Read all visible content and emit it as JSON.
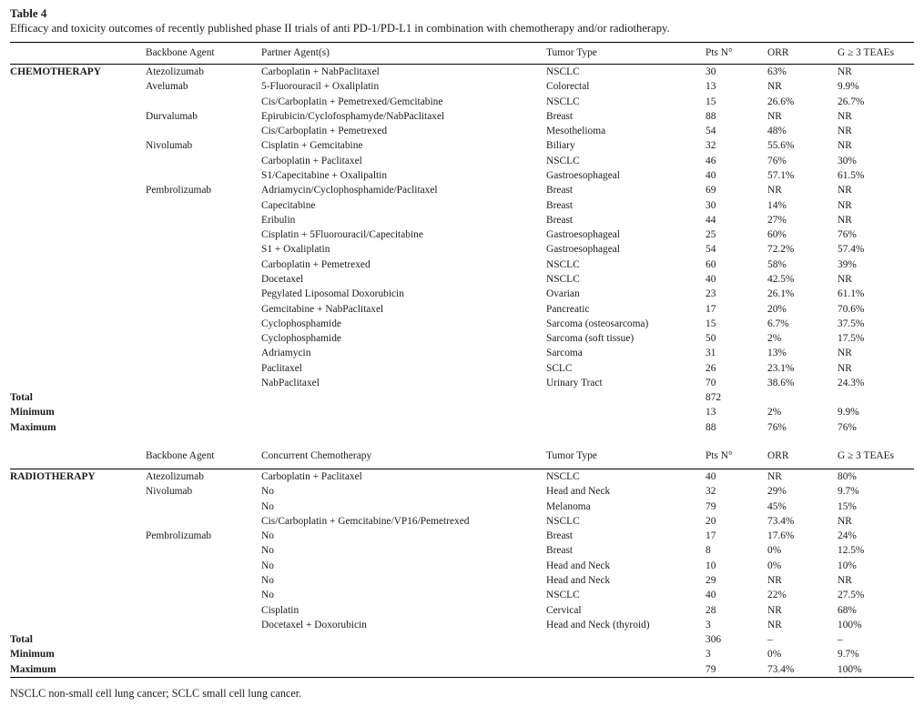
{
  "colors": {
    "background": "#ffffff",
    "text": "#1b1b1b",
    "rule": "#000000"
  },
  "table": {
    "caption": {
      "label": "Table 4",
      "description": "Efficacy and toxicity outcomes of recently published phase II trials of anti PD-1/PD-L1 in combination with chemotherapy and/or radiotherapy."
    },
    "sections": [
      {
        "name": "CHEMOTHERAPY",
        "headers": [
          "",
          "Backbone Agent",
          "Partner Agent(s)",
          "Tumor Type",
          "Pts N°",
          "ORR",
          "G ≥ 3 TEAEs"
        ],
        "rows": [
          [
            "CHEMOTHERAPY",
            "Atezolizumab",
            "Carboplatin + NabPaclitaxel",
            "NSCLC",
            "30",
            "63%",
            "NR"
          ],
          [
            "",
            "Avelumab",
            "5-Fluorouracil + Oxaliplatin",
            "Colorectal",
            "13",
            "NR",
            "9.9%"
          ],
          [
            "",
            "",
            "Cis/Carboplatin + Pemetrexed/Gemcitabine",
            "NSCLC",
            "15",
            "26.6%",
            "26.7%"
          ],
          [
            "",
            "Durvalumab",
            "Epirubicin/Cyclofosphamyde/NabPaclitaxel",
            "Breast",
            "88",
            "NR",
            "NR"
          ],
          [
            "",
            "",
            "Cis/Carboplatin + Pemetrexed",
            "Mesothelioma",
            "54",
            "48%",
            "NR"
          ],
          [
            "",
            "Nivolumab",
            "Cisplatin + Gemcitabine",
            "Biliary",
            "32",
            "55.6%",
            "NR"
          ],
          [
            "",
            "",
            "Carboplatin + Paclitaxel",
            "NSCLC",
            "46",
            "76%",
            "30%"
          ],
          [
            "",
            "",
            "S1/Capecitabine + Oxalipaltin",
            "Gastroesophageal",
            "40",
            "57.1%",
            "61.5%"
          ],
          [
            "",
            "Pembrolizumab",
            "Adriamycin/Cyclophosphamide/Paclitaxel",
            "Breast",
            "69",
            "NR",
            "NR"
          ],
          [
            "",
            "",
            "Capecitabine",
            "Breast",
            "30",
            "14%",
            "NR"
          ],
          [
            "",
            "",
            "Eribulin",
            "Breast",
            "44",
            "27%",
            "NR"
          ],
          [
            "",
            "",
            "Cisplatin + 5Fluorouracil/Capecitabine",
            "Gastroesophageal",
            "25",
            "60%",
            "76%"
          ],
          [
            "",
            "",
            "S1 + Oxaliplatin",
            "Gastroesophageal",
            "54",
            "72.2%",
            "57.4%"
          ],
          [
            "",
            "",
            "Carboplatin + Pemetrexed",
            "NSCLC",
            "60",
            "58%",
            "39%"
          ],
          [
            "",
            "",
            "Docetaxel",
            "NSCLC",
            "40",
            "42.5%",
            "NR"
          ],
          [
            "",
            "",
            "Pegylated Liposomal Doxorubicin",
            "Ovarian",
            "23",
            "26.1%",
            "61.1%"
          ],
          [
            "",
            "",
            "Gemcitabine + NabPaclitaxel",
            "Pancreatic",
            "17",
            "20%",
            "70.6%"
          ],
          [
            "",
            "",
            "Cyclophosphamide",
            "Sarcoma (osteosarcoma)",
            "15",
            "6.7%",
            "37.5%"
          ],
          [
            "",
            "",
            "Cyclophosphamide",
            "Sarcoma (soft tissue)",
            "50",
            "2%",
            "17.5%"
          ],
          [
            "",
            "",
            "Adriamycin",
            "Sarcoma",
            "31",
            "13%",
            "NR"
          ],
          [
            "",
            "",
            "Paclitaxel",
            "SCLC",
            "26",
            "23.1%",
            "NR"
          ],
          [
            "",
            "",
            "NabPaclitaxel",
            "Urinary Tract",
            "70",
            "38.6%",
            "24.3%"
          ]
        ],
        "summary": [
          [
            "Total",
            "",
            "",
            "",
            "872",
            "",
            ""
          ],
          [
            "Minimum",
            "",
            "",
            "",
            "13",
            "2%",
            "9.9%"
          ],
          [
            "Maximum",
            "",
            "",
            "",
            "88",
            "76%",
            "76%"
          ]
        ]
      },
      {
        "name": "RADIOTHERAPY",
        "headers": [
          "",
          "Backbone Agent",
          "Concurrent Chemotherapy",
          "Tumor Type",
          "Pts N°",
          "ORR",
          "G ≥ 3 TEAEs"
        ],
        "rows": [
          [
            "RADIOTHERAPY",
            "Atezolizumab",
            "Carboplatin + Paclitaxel",
            "NSCLC",
            "40",
            "NR",
            "80%"
          ],
          [
            "",
            "Nivolumab",
            "No",
            "Head and Neck",
            "32",
            "29%",
            "9.7%"
          ],
          [
            "",
            "",
            "No",
            "Melanoma",
            "79",
            "45%",
            "15%"
          ],
          [
            "",
            "",
            "Cis/Carboplatin + Gemcitabine/VP16/Pemetrexed",
            "NSCLC",
            "20",
            "73.4%",
            "NR"
          ],
          [
            "",
            "Pembrolizumab",
            "No",
            "Breast",
            "17",
            "17.6%",
            "24%"
          ],
          [
            "",
            "",
            "No",
            "Breast",
            "8",
            "0%",
            "12.5%"
          ],
          [
            "",
            "",
            "No",
            "Head and Neck",
            "10",
            "0%",
            "10%"
          ],
          [
            "",
            "",
            "No",
            "Head and Neck",
            "29",
            "NR",
            "NR"
          ],
          [
            "",
            "",
            "No",
            "NSCLC",
            "40",
            "22%",
            "27.5%"
          ],
          [
            "",
            "",
            "Cisplatin",
            "Cervical",
            "28",
            "NR",
            "68%"
          ],
          [
            "",
            "",
            "Docetaxel + Doxorubicin",
            "Head and Neck (thyroid)",
            "3",
            "NR",
            "100%"
          ]
        ],
        "summary": [
          [
            "Total",
            "",
            "",
            "",
            "306",
            "–",
            "–"
          ],
          [
            "Minimum",
            "",
            "",
            "",
            "3",
            "0%",
            "9.7%"
          ],
          [
            "Maximum",
            "",
            "",
            "",
            "79",
            "73.4%",
            "100%"
          ]
        ]
      }
    ],
    "footnote": "NSCLC non-small cell lung cancer; SCLC small cell lung cancer."
  }
}
